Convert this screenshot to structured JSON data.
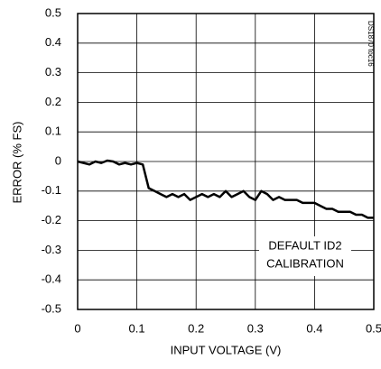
{
  "chart_data": {
    "type": "line",
    "xlabel": "INPUT VOLTAGE (V)",
    "ylabel": "ERROR (% FS)",
    "annotation": [
      "DEFAULT ID2",
      "CALIBRATION"
    ],
    "figure_id": "DS1870 toc16",
    "x": [
      0,
      0.01,
      0.02,
      0.03,
      0.04,
      0.05,
      0.06,
      0.07,
      0.08,
      0.09,
      0.1,
      0.11,
      0.12,
      0.13,
      0.14,
      0.15,
      0.16,
      0.17,
      0.18,
      0.19,
      0.2,
      0.21,
      0.22,
      0.23,
      0.24,
      0.25,
      0.26,
      0.27,
      0.28,
      0.29,
      0.3,
      0.31,
      0.32,
      0.33,
      0.34,
      0.35,
      0.36,
      0.37,
      0.38,
      0.39,
      0.4,
      0.41,
      0.42,
      0.43,
      0.44,
      0.45,
      0.46,
      0.47,
      0.48,
      0.49,
      0.5
    ],
    "series": [
      {
        "color": "#000000",
        "values": [
          0,
          -0.005,
          -0.01,
          0,
          -0.005,
          0.003,
          0,
          -0.01,
          -0.005,
          -0.01,
          -0.005,
          -0.01,
          -0.09,
          -0.1,
          -0.11,
          -0.12,
          -0.11,
          -0.12,
          -0.11,
          -0.13,
          -0.12,
          -0.11,
          -0.12,
          -0.11,
          -0.12,
          -0.1,
          -0.12,
          -0.11,
          -0.1,
          -0.12,
          -0.13,
          -0.1,
          -0.11,
          -0.13,
          -0.12,
          -0.13,
          -0.13,
          -0.13,
          -0.14,
          -0.14,
          -0.14,
          -0.15,
          -0.16,
          -0.16,
          -0.17,
          -0.17,
          -0.17,
          -0.18,
          -0.18,
          -0.19,
          -0.19
        ]
      }
    ],
    "xlim": [
      0,
      0.5
    ],
    "ylim": [
      -0.5,
      0.5
    ],
    "xticks": [
      0,
      0.1,
      0.2,
      0.3,
      0.4,
      0.5
    ],
    "yticks": [
      0.5,
      0.4,
      0.3,
      0.2,
      0.1,
      0,
      -0.1,
      -0.2,
      -0.3,
      -0.4,
      -0.5
    ],
    "grid": true
  }
}
